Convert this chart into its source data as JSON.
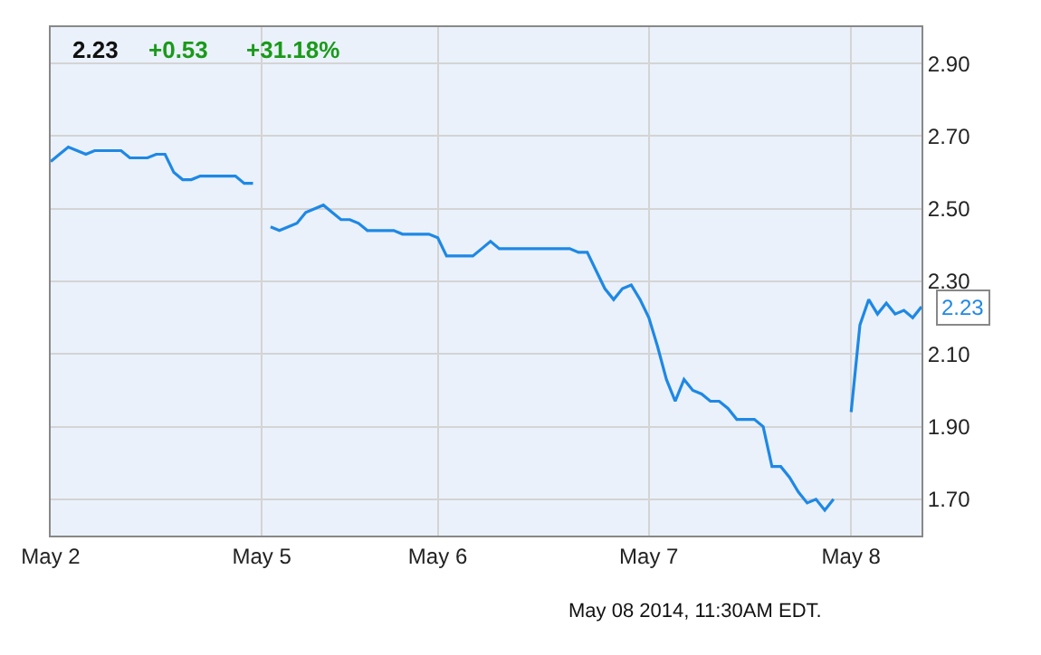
{
  "chart_data": {
    "type": "line",
    "categories": [
      "May 2",
      null,
      null,
      null,
      null,
      null,
      null,
      null,
      null,
      null,
      null,
      null,
      null,
      null,
      null,
      null,
      null,
      null,
      null,
      null,
      null,
      null,
      null,
      null,
      "May 5",
      null,
      null,
      null,
      null,
      null,
      null,
      null,
      null,
      null,
      null,
      null,
      null,
      null,
      null,
      null,
      null,
      null,
      null,
      null,
      "May 6",
      null,
      null,
      null,
      null,
      null,
      null,
      null,
      null,
      null,
      null,
      null,
      null,
      null,
      null,
      null,
      null,
      null,
      null,
      null,
      null,
      null,
      null,
      null,
      "May 7",
      null,
      null,
      null,
      null,
      null,
      null,
      null,
      null,
      null,
      null,
      null,
      null,
      null,
      null,
      null,
      null,
      null,
      null,
      null,
      null,
      null,
      null,
      "May 8",
      null,
      null,
      null,
      null,
      null,
      null,
      null,
      null
    ],
    "series": [
      {
        "color": "#1e88e5",
        "values": [
          2.63,
          2.65,
          2.67,
          2.66,
          2.65,
          2.66,
          2.66,
          2.66,
          2.66,
          2.64,
          2.64,
          2.64,
          2.65,
          2.65,
          2.6,
          2.58,
          2.58,
          2.59,
          2.59,
          2.59,
          2.59,
          2.59,
          2.57,
          2.57,
          null,
          2.45,
          2.44,
          2.45,
          2.46,
          2.49,
          2.5,
          2.51,
          2.49,
          2.47,
          2.47,
          2.46,
          2.44,
          2.44,
          2.44,
          2.44,
          2.43,
          2.43,
          2.43,
          2.43,
          2.42,
          2.37,
          2.37,
          2.37,
          2.37,
          2.39,
          2.41,
          2.39,
          2.39,
          2.39,
          2.39,
          2.39,
          2.39,
          2.39,
          2.39,
          2.39,
          2.38,
          2.38,
          2.33,
          2.28,
          2.25,
          2.28,
          2.29,
          2.25,
          2.2,
          2.12,
          2.03,
          1.97,
          2.03,
          2.0,
          1.99,
          1.97,
          1.97,
          1.95,
          1.92,
          1.92,
          1.92,
          1.9,
          1.79,
          1.79,
          1.76,
          1.72,
          1.69,
          1.7,
          1.67,
          1.7,
          null,
          1.94,
          2.18,
          2.25,
          2.21,
          2.24,
          2.21,
          2.22,
          2.2,
          2.23
        ]
      }
    ],
    "ylim": [
      1.6,
      3.0
    ],
    "yticks": [
      {
        "value": 1.7,
        "label": "1.70"
      },
      {
        "value": 1.9,
        "label": "1.90"
      },
      {
        "value": 2.1,
        "label": "2.10"
      },
      {
        "value": 2.3,
        "label": "2.30"
      },
      {
        "value": 2.5,
        "label": "2.50"
      },
      {
        "value": 2.7,
        "label": "2.70"
      },
      {
        "value": 2.9,
        "label": "2.90"
      }
    ],
    "grid": true,
    "marker": "none",
    "line_style": "solid",
    "annotations": [
      "2.23",
      "+0.53",
      "+31.18%",
      "May 08 2014, 11:30AM EDT.",
      "2.23"
    ]
  }
}
